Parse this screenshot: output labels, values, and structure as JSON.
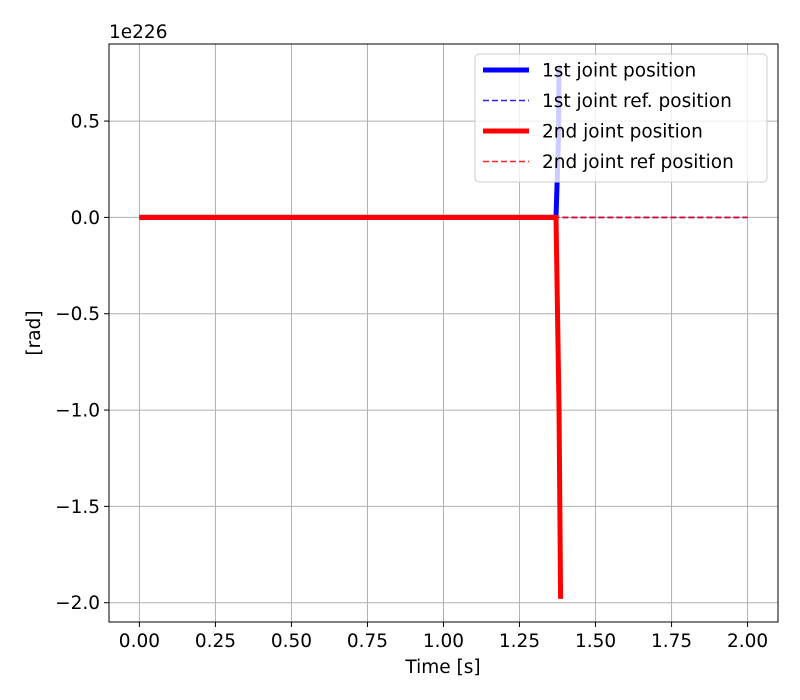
{
  "chart_data": {
    "type": "line",
    "title": "",
    "xlabel": "Time [s]",
    "ylabel": "[rad]",
    "y_offset_label": "1e226",
    "xlim": [
      -0.1,
      2.1
    ],
    "ylim": [
      -2.1,
      0.9
    ],
    "x_ticks": [
      0.0,
      0.25,
      0.5,
      0.75,
      1.0,
      1.25,
      1.5,
      1.75,
      2.0
    ],
    "x_tick_labels": [
      "0.00",
      "0.25",
      "0.50",
      "0.75",
      "1.00",
      "1.25",
      "1.50",
      "1.75",
      "2.00"
    ],
    "y_ticks": [
      0.5,
      0.0,
      -0.5,
      -1.0,
      -1.5,
      -2.0
    ],
    "y_tick_labels": [
      "0.5",
      "0.0",
      "−0.5",
      "−1.0",
      "−1.5",
      "−2.0"
    ],
    "grid": true,
    "legend_position": "top-right",
    "series": [
      {
        "name": "1st joint position",
        "color": "#0000ff",
        "style": "solid",
        "x": [
          0.0,
          1.37,
          1.378,
          1.38
        ],
        "y": [
          0.0,
          0.0,
          0.4,
          0.78
        ]
      },
      {
        "name": "1st joint ref. position",
        "color": "#0000ff",
        "style": "dashed",
        "x": [
          0.0,
          2.0
        ],
        "y": [
          0.0,
          0.0
        ]
      },
      {
        "name": "2nd joint position",
        "color": "#ff0000",
        "style": "solid",
        "x": [
          0.0,
          1.37,
          1.38,
          1.385
        ],
        "y": [
          0.0,
          0.0,
          -1.0,
          -1.98
        ]
      },
      {
        "name": "2nd joint ref position",
        "color": "#ff0000",
        "style": "dashed",
        "x": [
          0.0,
          2.0
        ],
        "y": [
          0.0,
          0.0
        ]
      }
    ]
  }
}
